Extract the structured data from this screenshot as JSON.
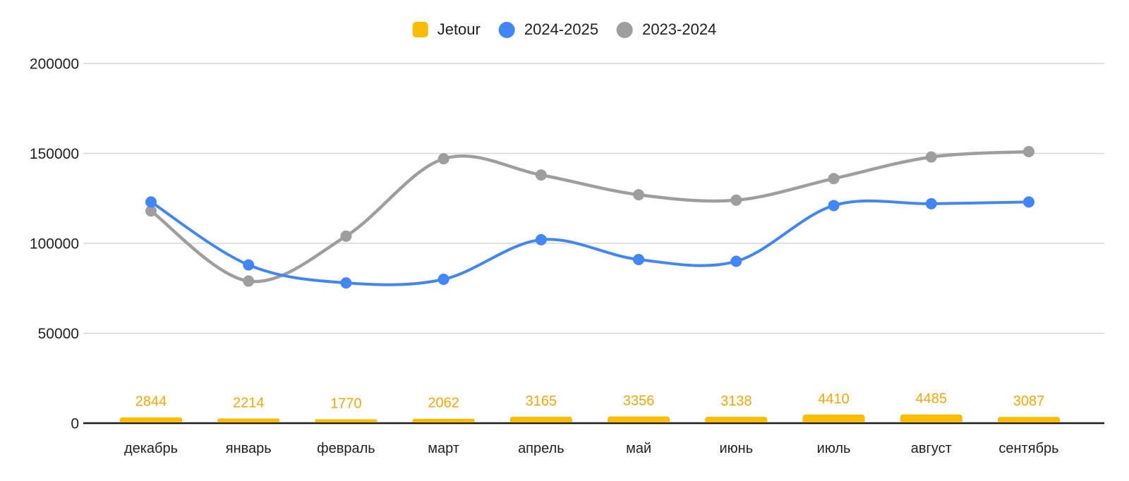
{
  "background_color": "#ffffff",
  "legend": [
    {
      "label": "Jetour",
      "marker": "square",
      "color": "#FBBC04"
    },
    {
      "label": "2024-2025",
      "marker": "circle",
      "color": "#4285F4"
    },
    {
      "label": "2023-2024",
      "marker": "circle",
      "color": "#9E9E9E"
    }
  ],
  "chart_data": {
    "type": "combo",
    "title": "",
    "xlabel": "",
    "ylabel": "",
    "grid": true,
    "legend_position": "top",
    "ylim": [
      0,
      200000
    ],
    "y_ticks": [
      0,
      50000,
      100000,
      150000,
      200000
    ],
    "y_tick_labels": [
      "0",
      "50000",
      "100000",
      "150000",
      "200000"
    ],
    "categories": [
      "декабрь",
      "январь",
      "февраль",
      "март",
      "апрель",
      "май",
      "июнь",
      "июль",
      "август",
      "сентябрь"
    ],
    "series": [
      {
        "name": "Jetour",
        "type": "bar",
        "color": "#FBBC04",
        "label_color": "#F6A70A",
        "values": [
          2844,
          2214,
          1770,
          2062,
          3165,
          3356,
          3138,
          4410,
          4485,
          3087
        ],
        "data_labels": [
          "2844",
          "2214",
          "1770",
          "2062",
          "3165",
          "3356",
          "3138",
          "4410",
          "4485",
          "3087"
        ]
      },
      {
        "name": "2024-2025",
        "type": "line",
        "color": "#4285F4",
        "values": [
          123000,
          88000,
          78000,
          80000,
          102000,
          91000,
          90000,
          121000,
          122000,
          123000
        ]
      },
      {
        "name": "2023-2024",
        "type": "line",
        "color": "#9E9E9E",
        "values": [
          118000,
          79000,
          104000,
          147000,
          138000,
          127000,
          124000,
          136000,
          148000,
          151000
        ]
      }
    ],
    "colors": {
      "gridline": "#D6D6D6",
      "axis_line": "#1B1B1B",
      "axis_text": "#1F1F1F"
    }
  }
}
